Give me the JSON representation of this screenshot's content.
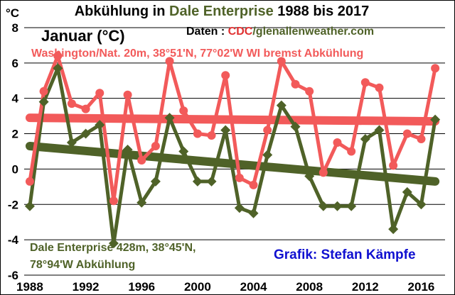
{
  "header": {
    "unit": "°C",
    "title_part1": "Abkühlung in ",
    "title_part2": "Dale Enterprise",
    "title_part3": " 1988 bis 2017",
    "subtitle": "Januar (°C)",
    "source_part1": "Daten : ",
    "source_part2": "CDC",
    "source_part3": "/glenallenweather.com"
  },
  "annotations": {
    "washington": "Washington/Nat. 20m, 38°51'N, 77°02'W WI bremst Abkühlung",
    "dale_line1": "Dale Enterprise 428m, 38°45'N,",
    "dale_line2": "78°94'W  Abkühlung",
    "credit": "Grafik: Stefan Kämpfe"
  },
  "colors": {
    "washington": "#f25a5a",
    "dale": "#4f6228",
    "title_green": "#4f6228",
    "cdc_red": "#e03030",
    "credit_blue": "#1010d0",
    "grid": "#000000"
  },
  "chart_data": {
    "type": "line",
    "x": [
      1988,
      1989,
      1990,
      1991,
      1992,
      1993,
      1994,
      1995,
      1996,
      1997,
      1998,
      1999,
      2000,
      2001,
      2002,
      2003,
      2004,
      2005,
      2006,
      2007,
      2008,
      2009,
      2010,
      2011,
      2012,
      2013,
      2014,
      2015,
      2016,
      2017
    ],
    "xticks": [
      1988,
      1992,
      1996,
      2000,
      2004,
      2008,
      2012,
      2016
    ],
    "xlim": [
      1987.8,
      2017.4
    ],
    "yticks": [
      -6,
      -4,
      -2,
      0,
      2,
      4,
      6,
      8
    ],
    "ylim": [
      -6,
      8.6
    ],
    "grid": "horizontal",
    "series": [
      {
        "name": "Washington/Nat.",
        "color": "#f25a5a",
        "marker": "circle",
        "values": [
          -0.7,
          4.4,
          6.4,
          3.7,
          3.4,
          4.3,
          -1.8,
          4.2,
          0.5,
          1.3,
          6.1,
          3.3,
          2.0,
          1.9,
          5.3,
          -0.5,
          -0.9,
          2.2,
          6.1,
          4.8,
          4.4,
          -0.2,
          1.5,
          1.0,
          4.9,
          4.6,
          0.2,
          2.0,
          1.7,
          5.7
        ],
        "trend": [
          2.9,
          2.7
        ]
      },
      {
        "name": "Dale Enterprise",
        "color": "#4f6228",
        "marker": "diamond",
        "values": [
          -2.1,
          3.8,
          5.7,
          1.5,
          2.0,
          2.5,
          -4.2,
          1.1,
          -1.9,
          -0.7,
          2.9,
          1.0,
          -0.7,
          -0.7,
          2.2,
          -2.2,
          -2.5,
          0.8,
          3.6,
          2.4,
          -0.4,
          -2.1,
          -2.1,
          -2.1,
          1.7,
          2.2,
          -3.4,
          -1.3,
          -2.0,
          2.8
        ],
        "trend": [
          1.3,
          -0.7
        ]
      }
    ]
  }
}
